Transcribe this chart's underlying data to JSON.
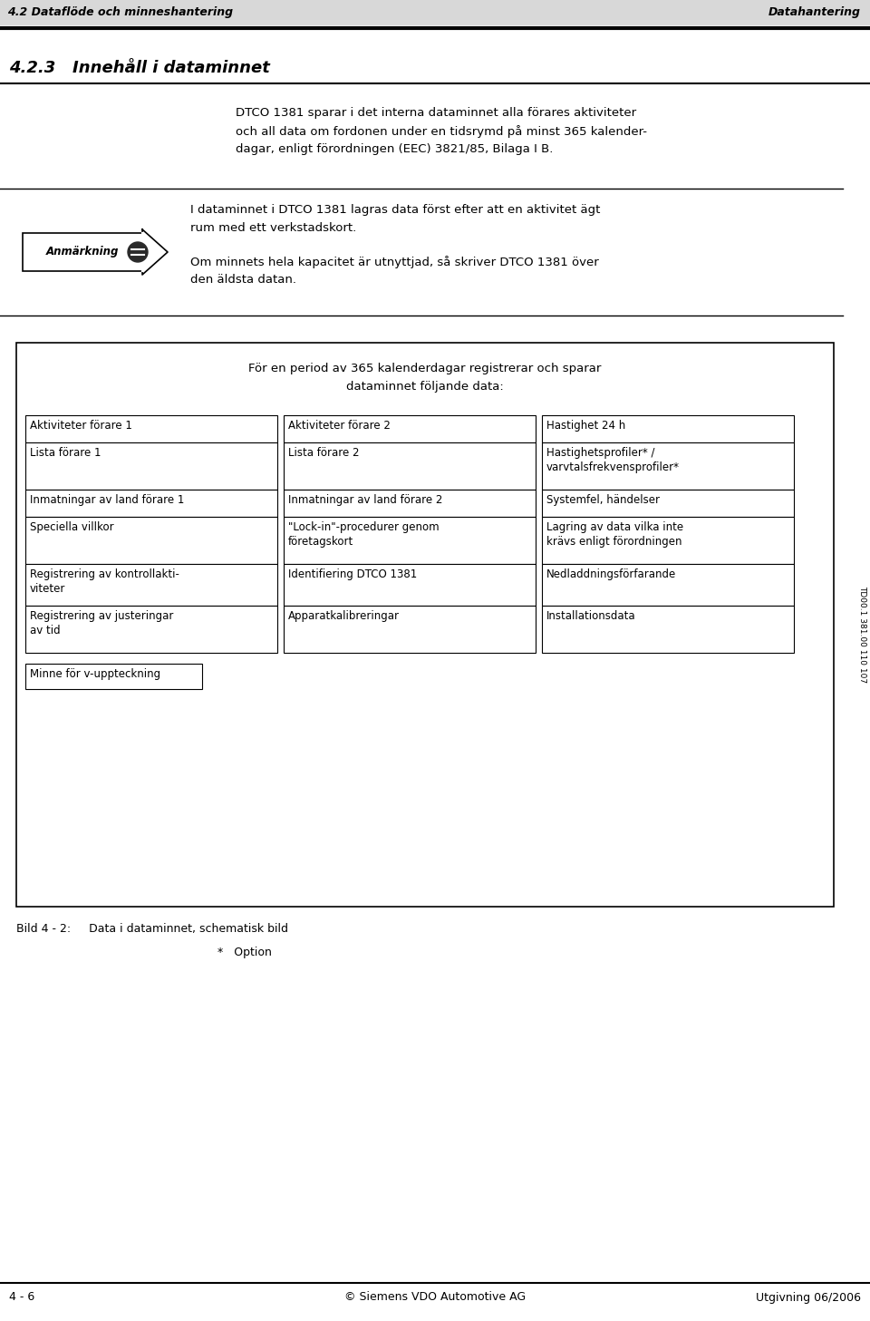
{
  "header_left": "4.2 Dataflöde och minneshantering",
  "header_right": "Datahantering",
  "section_title": "4.2.3   Innehåll i dataminnet",
  "main_text_lines": [
    "DTCO 1381 sparar i det interna dataminnet alla förares aktiviteter",
    "och all data om fordonen under en tidsrymd på minst 365 kalender-",
    "dagar, enligt förordningen (EEC) 3821/85, Bilaga I B."
  ],
  "anmarkning_label": "Anmärkning",
  "anmarkning_text1_lines": [
    "I dataminnet i DTCO 1381 lagras data först efter att en aktivitet ägt",
    "rum med ett verkstadskort."
  ],
  "anmarkning_text2_lines": [
    "Om minnets hela kapacitet är utnyttjad, så skriver DTCO 1381 över",
    "den äldsta datan."
  ],
  "box_title_lines": [
    "För en period av 365 kalenderdagar registrerar och sparar",
    "dataminnet följande data:"
  ],
  "col1_items": [
    "Aktiviteter förare 1",
    "Lista förare 1",
    "Inmatningar av land förare 1",
    "Speciella villkor",
    "Registrering av kontrollakti-\nviteter",
    "Registrering av justeringar\nav tid"
  ],
  "col2_items": [
    "Aktiviteter förare 2",
    "Lista förare 2",
    "Inmatningar av land förare 2",
    "\"Lock-in\"-procedurer genom\nföretagskort",
    "Identifiering DTCO 1381",
    "Apparatkalibreringar"
  ],
  "col3_items": [
    "Hastighet 24 h",
    "Hastighetsprofiler* /\nvarvtalsfrekvensprofiler*",
    "Systemfel, händelser",
    "Lagring av data vilka inte\nkrävs enligt förordningen",
    "Nedladdningsförfarande",
    "Installationsdata"
  ],
  "bottom_box": "Minne för v-uppteckning",
  "caption": "Bild 4 - 2:     Data i dataminnet, schematisk bild",
  "caption2": "*   Option",
  "side_text": "TD00.1 381.00 110 107",
  "footer_left": "4 - 6",
  "footer_center": "© Siemens VDO Automotive AG",
  "footer_right": "Utgivning 06/2006",
  "bg_color": "#ffffff",
  "header_bg": "#d8d8d8",
  "text_color": "#000000",
  "line_color": "#000000"
}
